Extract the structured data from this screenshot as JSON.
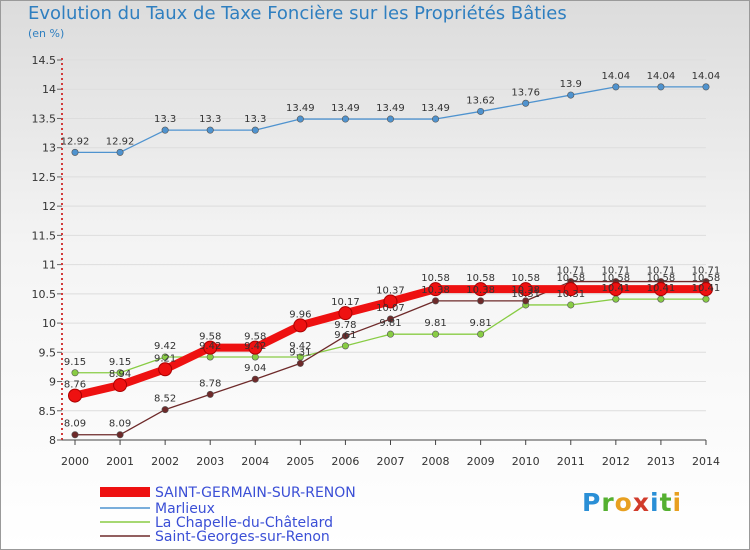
{
  "chart_data": {
    "type": "line",
    "title": "Evolution du Taux de Taxe Foncière sur les Propriétés Bâties",
    "ylabel": "(en %)",
    "xlabel": "",
    "categories": [
      "2000",
      "2001",
      "2002",
      "2003",
      "2004",
      "2005",
      "2006",
      "2007",
      "2008",
      "2009",
      "2010",
      "2011",
      "2012",
      "2013",
      "2014"
    ],
    "yticks": [
      "8",
      "8.5",
      "9",
      "9.5",
      "10",
      "10.5",
      "11",
      "11.5",
      "12",
      "12.5",
      "13",
      "13.5",
      "14",
      "14.5"
    ],
    "ylim": [
      8,
      14.5
    ],
    "series": [
      {
        "name": "SAINT-GERMAIN-SUR-RENON",
        "color": "#ee1111",
        "values": [
          8.76,
          8.94,
          9.21,
          9.58,
          9.58,
          9.96,
          10.17,
          10.37,
          10.58,
          10.58,
          10.58,
          10.58,
          10.58,
          10.58,
          10.58
        ],
        "labels": [
          "8.76",
          "8.94",
          "9.21",
          "9.58",
          "9.58",
          "9.96",
          "10.17",
          "10.37",
          "10.58",
          "10.58",
          "10.58",
          "10.58",
          "10.58",
          "10.58",
          "10.58"
        ]
      },
      {
        "name": "Marlieux",
        "color": "#4f93cf",
        "values": [
          12.92,
          12.92,
          13.3,
          13.3,
          13.3,
          13.49,
          13.49,
          13.49,
          13.49,
          13.62,
          13.76,
          13.9,
          14.04,
          14.04,
          14.04
        ],
        "labels": [
          "12.92",
          "12.92",
          "13.3",
          "13.3",
          "13.3",
          "13.49",
          "13.49",
          "13.49",
          "13.49",
          "13.62",
          "13.76",
          "13.9",
          "14.04",
          "14.04",
          "14.04"
        ]
      },
      {
        "name": "La Chapelle-du-Châtelard",
        "color": "#88cc44",
        "values": [
          9.15,
          9.15,
          9.42,
          9.42,
          9.42,
          9.42,
          9.61,
          9.81,
          9.81,
          9.81,
          10.31,
          10.31,
          10.41,
          10.41,
          10.41
        ],
        "labels": [
          "9.15",
          "9.15",
          "9.42",
          "9.42",
          "9.42",
          "9.42",
          "9.61",
          "9.81",
          "9.81",
          "9.81",
          "10.31",
          "10.31",
          "10.41",
          "10.41",
          "10.41"
        ]
      },
      {
        "name": "Saint-Georges-sur-Renon",
        "color": "#6e2a2a",
        "values": [
          8.09,
          8.09,
          8.52,
          8.78,
          9.04,
          9.31,
          9.78,
          10.07,
          10.38,
          10.38,
          10.38,
          10.71,
          10.71,
          10.71,
          10.71
        ],
        "labels": [
          "8.09",
          "8.09",
          "8.52",
          "8.78",
          "9.04",
          "9.31",
          "9.78",
          "10.07",
          "10.38",
          "10.38",
          "10.38",
          "10.71",
          "10.71",
          "10.71",
          "10.71"
        ]
      }
    ]
  },
  "logo": {
    "p": "P",
    "r": "r",
    "o": "o",
    "x": "x",
    "i": "i",
    "t": "t",
    "i2": "i"
  }
}
